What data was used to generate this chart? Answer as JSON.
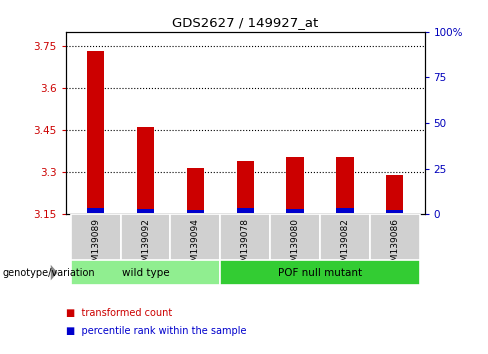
{
  "title": "GDS2627 / 149927_at",
  "samples": [
    "GSM139089",
    "GSM139092",
    "GSM139094",
    "GSM139078",
    "GSM139080",
    "GSM139082",
    "GSM139086"
  ],
  "transformed_counts": [
    3.73,
    3.46,
    3.315,
    3.34,
    3.355,
    3.355,
    3.29
  ],
  "percentile_ranks": [
    2.5,
    2.0,
    1.5,
    2.5,
    2.0,
    2.5,
    1.5
  ],
  "baseline": 3.155,
  "ylim_left": [
    3.15,
    3.8
  ],
  "ylim_right": [
    0,
    100
  ],
  "yticks_left": [
    3.15,
    3.3,
    3.45,
    3.6,
    3.75
  ],
  "yticks_right": [
    0,
    25,
    50,
    75,
    100
  ],
  "ytick_labels_left": [
    "3.15",
    "3.3",
    "3.45",
    "3.6",
    "3.75"
  ],
  "ytick_labels_right": [
    "0",
    "25",
    "50",
    "75",
    "100%"
  ],
  "groups": [
    {
      "name": "wild type",
      "indices": [
        0,
        1,
        2
      ],
      "color": "#90EE90"
    },
    {
      "name": "POF null mutant",
      "indices": [
        3,
        4,
        5,
        6
      ],
      "color": "#33CC33"
    }
  ],
  "bar_color_red": "#CC0000",
  "bar_color_blue": "#0000CC",
  "bar_width": 0.35,
  "group_label": "genotype/variation",
  "legend_items": [
    {
      "color": "#CC0000",
      "label": "transformed count"
    },
    {
      "color": "#0000CC",
      "label": "percentile rank within the sample"
    }
  ],
  "left_axis_color": "#CC0000",
  "right_axis_color": "#0000BB"
}
